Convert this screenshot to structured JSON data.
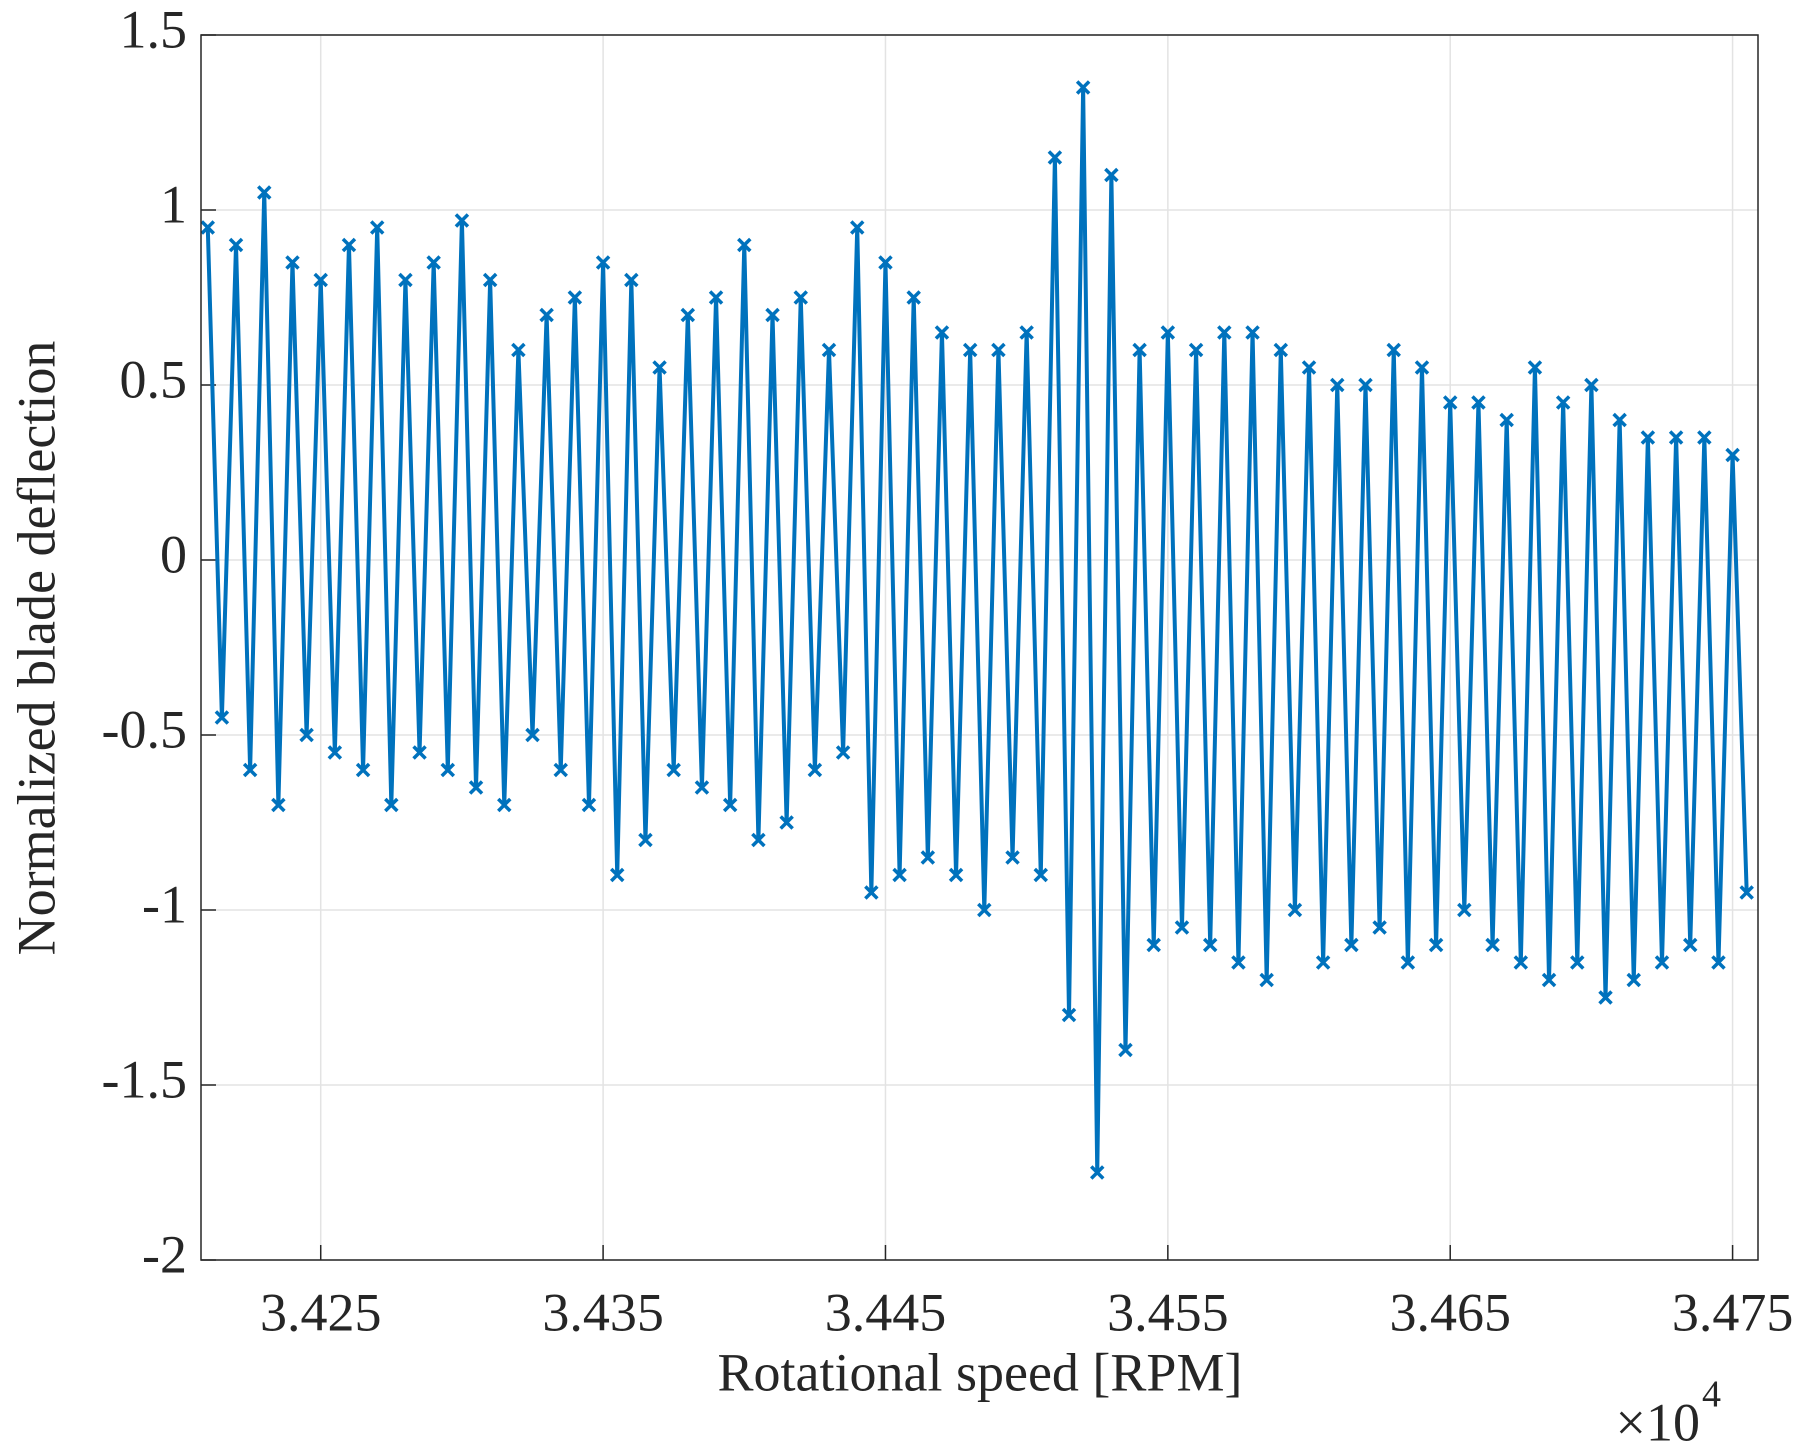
{
  "chart_data": {
    "type": "line",
    "xlabel": "Rotational speed [RPM]",
    "ylabel": "Normalized blade deflection",
    "x_multiplier": {
      "base": "×10",
      "exponent": "4"
    },
    "xlim": [
      3.42076,
      3.4759
    ],
    "ylim": [
      -2,
      1.5
    ],
    "xticks": [
      3.425,
      3.435,
      3.445,
      3.455,
      3.465,
      3.475
    ],
    "yticks": [
      -2,
      -1.5,
      -1,
      -0.5,
      0,
      0.5,
      1,
      1.5
    ],
    "grid": true,
    "series": [
      {
        "color": "#0072bd",
        "x": [
          3.421,
          3.4215,
          3.422,
          3.4225,
          3.423,
          3.4235,
          3.424,
          3.4245,
          3.425,
          3.4255,
          3.426,
          3.4265,
          3.427,
          3.4275,
          3.428,
          3.4285,
          3.429,
          3.4295,
          3.43,
          3.4305,
          3.431,
          3.4315,
          3.432,
          3.4325,
          3.433,
          3.4335,
          3.434,
          3.4345,
          3.435,
          3.4355,
          3.436,
          3.4365,
          3.437,
          3.4375,
          3.438,
          3.4385,
          3.439,
          3.4395,
          3.44,
          3.4405,
          3.441,
          3.4415,
          3.442,
          3.4425,
          3.443,
          3.4435,
          3.444,
          3.4445,
          3.445,
          3.4455,
          3.446,
          3.4465,
          3.447,
          3.4475,
          3.448,
          3.4485,
          3.449,
          3.4495,
          3.45,
          3.4505,
          3.451,
          3.4515,
          3.452,
          3.4525,
          3.453,
          3.4535,
          3.454,
          3.4545,
          3.455,
          3.4555,
          3.456,
          3.4565,
          3.457,
          3.4575,
          3.458,
          3.4585,
          3.459,
          3.4595,
          3.46,
          3.4605,
          3.461,
          3.4615,
          3.462,
          3.4625,
          3.463,
          3.4635,
          3.464,
          3.4645,
          3.465,
          3.4655,
          3.466,
          3.4665,
          3.467,
          3.4675,
          3.468,
          3.4685,
          3.469,
          3.4695,
          3.47,
          3.4705,
          3.471,
          3.4715,
          3.472,
          3.4725,
          3.473,
          3.4735,
          3.474,
          3.4745,
          3.475,
          3.4755
        ],
        "values": [
          0.95,
          -0.45,
          0.9,
          -0.6,
          1.05,
          -0.7,
          0.85,
          -0.5,
          0.8,
          -0.55,
          0.9,
          -0.6,
          0.95,
          -0.7,
          0.8,
          -0.55,
          0.85,
          -0.6,
          0.97,
          -0.65,
          0.8,
          -0.7,
          0.6,
          -0.5,
          0.7,
          -0.6,
          0.75,
          -0.7,
          0.85,
          -0.9,
          0.8,
          -0.8,
          0.55,
          -0.6,
          0.7,
          -0.65,
          0.75,
          -0.7,
          0.9,
          -0.8,
          0.7,
          -0.75,
          0.75,
          -0.6,
          0.6,
          -0.55,
          0.95,
          -0.95,
          0.85,
          -0.9,
          0.75,
          -0.85,
          0.65,
          -0.9,
          0.6,
          -1.0,
          0.6,
          -0.85,
          0.65,
          -0.9,
          1.15,
          -1.3,
          1.35,
          -1.75,
          1.1,
          -1.4,
          0.6,
          -1.1,
          0.65,
          -1.05,
          0.6,
          -1.1,
          0.65,
          -1.15,
          0.65,
          -1.2,
          0.6,
          -1.0,
          0.55,
          -1.15,
          0.5,
          -1.1,
          0.5,
          -1.05,
          0.6,
          -1.15,
          0.55,
          -1.1,
          0.45,
          -1.0,
          0.45,
          -1.1,
          0.4,
          -1.15,
          0.55,
          -1.2,
          0.45,
          -1.15,
          0.5,
          -1.25,
          0.4,
          -1.2,
          0.35,
          -1.15,
          0.35,
          -1.1,
          0.35,
          -1.15,
          0.3,
          -0.95
        ]
      }
    ]
  }
}
